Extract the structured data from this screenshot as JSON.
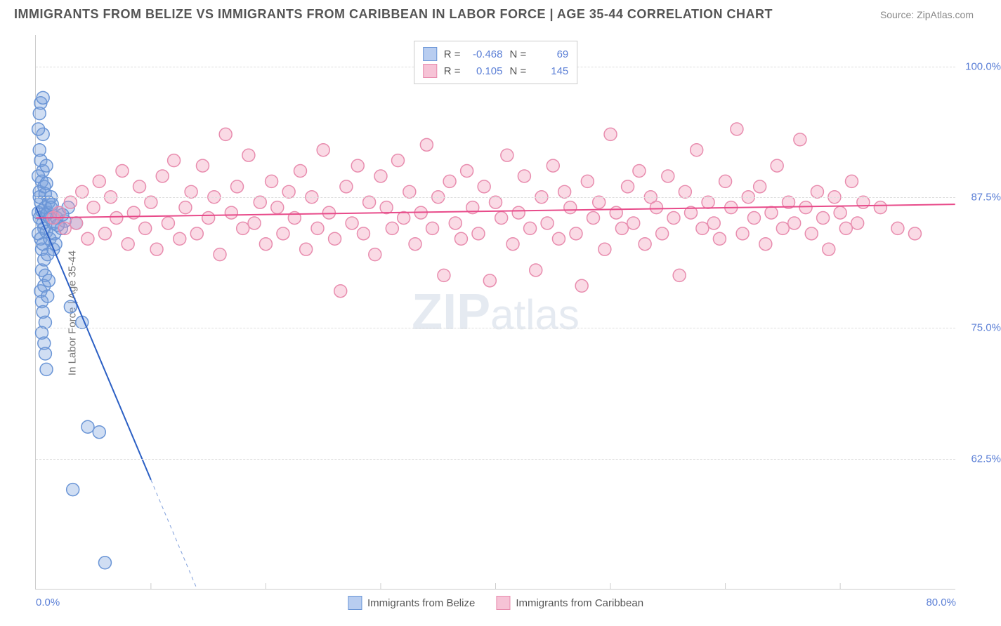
{
  "title": "IMMIGRANTS FROM BELIZE VS IMMIGRANTS FROM CARIBBEAN IN LABOR FORCE | AGE 35-44 CORRELATION CHART",
  "source": "Source: ZipAtlas.com",
  "y_axis_label": "In Labor Force | Age 35-44",
  "watermark_bold": "ZIP",
  "watermark_rest": "atlas",
  "chart": {
    "type": "scatter",
    "xlim": [
      0,
      80
    ],
    "ylim": [
      50,
      103
    ],
    "x_ticks": [
      0,
      80
    ],
    "x_tick_labels": [
      "0.0%",
      "80.0%"
    ],
    "x_minor_ticks": [
      10,
      20,
      30,
      40,
      50,
      60,
      70
    ],
    "y_ticks": [
      62.5,
      75,
      87.5,
      100
    ],
    "y_tick_labels": [
      "62.5%",
      "75.0%",
      "87.5%",
      "100.0%"
    ],
    "grid_color": "#dddddd",
    "axis_color": "#cccccc",
    "background_color": "#ffffff",
    "tick_label_color": "#5b7fd6",
    "marker_radius": 9,
    "marker_stroke_width": 1.5,
    "trend_line_width": 2
  },
  "series": [
    {
      "name": "Immigrants from Belize",
      "legend_label": "Immigrants from Belize",
      "R_label": "R =",
      "R_value": "-0.468",
      "N_label": "N =",
      "N_value": "69",
      "fill_color": "rgba(120, 160, 220, 0.35)",
      "stroke_color": "#6a95d6",
      "swatch_fill": "#b8cdf0",
      "swatch_border": "#6a95d6",
      "trend_color": "#2b5fc4",
      "trend": {
        "x1": 0,
        "y1": 86.5,
        "x2": 14,
        "y2": 50
      },
      "trend_solid_until_x": 10,
      "points": [
        [
          0.2,
          86.0
        ],
        [
          0.3,
          85.5
        ],
        [
          0.5,
          86.2
        ],
        [
          0.4,
          87.0
        ],
        [
          0.6,
          85.0
        ],
        [
          0.3,
          88.0
        ],
        [
          0.7,
          84.5
        ],
        [
          0.5,
          89.0
        ],
        [
          0.8,
          86.5
        ],
        [
          0.4,
          83.5
        ],
        [
          0.6,
          90.0
        ],
        [
          0.2,
          84.0
        ],
        [
          0.9,
          85.8
        ],
        [
          0.3,
          87.5
        ],
        [
          0.5,
          82.5
        ],
        [
          0.7,
          88.5
        ],
        [
          1.0,
          86.0
        ],
        [
          0.4,
          91.0
        ],
        [
          0.6,
          83.0
        ],
        [
          0.8,
          87.8
        ],
        [
          0.2,
          89.5
        ],
        [
          1.2,
          85.5
        ],
        [
          0.5,
          80.5
        ],
        [
          0.9,
          84.2
        ],
        [
          0.3,
          92.0
        ],
        [
          0.7,
          81.5
        ],
        [
          1.1,
          87.0
        ],
        [
          0.4,
          78.5
        ],
        [
          0.6,
          93.5
        ],
        [
          0.8,
          80.0
        ],
        [
          1.3,
          86.5
        ],
        [
          0.5,
          77.5
        ],
        [
          0.9,
          88.8
        ],
        [
          0.2,
          94.0
        ],
        [
          0.7,
          79.0
        ],
        [
          1.0,
          82.0
        ],
        [
          0.3,
          95.5
        ],
        [
          0.6,
          76.5
        ],
        [
          1.5,
          85.0
        ],
        [
          0.8,
          75.5
        ],
        [
          0.4,
          96.5
        ],
        [
          1.2,
          83.5
        ],
        [
          0.5,
          74.5
        ],
        [
          0.9,
          90.5
        ],
        [
          0.7,
          73.5
        ],
        [
          1.4,
          86.8
        ],
        [
          1.0,
          78.0
        ],
        [
          0.6,
          97.0
        ],
        [
          1.6,
          84.0
        ],
        [
          0.8,
          72.5
        ],
        [
          1.3,
          87.5
        ],
        [
          1.1,
          79.5
        ],
        [
          1.8,
          85.5
        ],
        [
          0.9,
          71.0
        ],
        [
          1.5,
          82.5
        ],
        [
          2.0,
          86.0
        ],
        [
          1.7,
          83.0
        ],
        [
          2.5,
          85.2
        ],
        [
          2.2,
          84.5
        ],
        [
          3.0,
          77.0
        ],
        [
          3.5,
          85.0
        ],
        [
          4.0,
          75.5
        ],
        [
          2.8,
          86.5
        ],
        [
          4.5,
          65.5
        ],
        [
          5.5,
          65.0
        ],
        [
          3.2,
          59.5
        ],
        [
          6.0,
          52.5
        ],
        [
          1.9,
          84.8
        ],
        [
          2.3,
          85.8
        ]
      ]
    },
    {
      "name": "Immigrants from Caribbean",
      "legend_label": "Immigrants from Caribbean",
      "R_label": "R =",
      "R_value": "0.105",
      "N_label": "N =",
      "N_value": "145",
      "fill_color": "rgba(240, 150, 180, 0.35)",
      "stroke_color": "#e88cae",
      "swatch_fill": "#f6c3d6",
      "swatch_border": "#e88cae",
      "trend_color": "#e84b8a",
      "trend": {
        "x1": 0,
        "y1": 85.5,
        "x2": 80,
        "y2": 86.8
      },
      "trend_solid_until_x": 80,
      "points": [
        [
          1.5,
          85.5
        ],
        [
          2.0,
          86.0
        ],
        [
          2.5,
          84.5
        ],
        [
          3.0,
          87.0
        ],
        [
          3.5,
          85.0
        ],
        [
          4.0,
          88.0
        ],
        [
          4.5,
          83.5
        ],
        [
          5.0,
          86.5
        ],
        [
          5.5,
          89.0
        ],
        [
          6.0,
          84.0
        ],
        [
          6.5,
          87.5
        ],
        [
          7.0,
          85.5
        ],
        [
          7.5,
          90.0
        ],
        [
          8.0,
          83.0
        ],
        [
          8.5,
          86.0
        ],
        [
          9.0,
          88.5
        ],
        [
          9.5,
          84.5
        ],
        [
          10.0,
          87.0
        ],
        [
          10.5,
          82.5
        ],
        [
          11.0,
          89.5
        ],
        [
          11.5,
          85.0
        ],
        [
          12.0,
          91.0
        ],
        [
          12.5,
          83.5
        ],
        [
          13.0,
          86.5
        ],
        [
          13.5,
          88.0
        ],
        [
          14.0,
          84.0
        ],
        [
          14.5,
          90.5
        ],
        [
          15.0,
          85.5
        ],
        [
          15.5,
          87.5
        ],
        [
          16.0,
          82.0
        ],
        [
          16.5,
          93.5
        ],
        [
          17.0,
          86.0
        ],
        [
          17.5,
          88.5
        ],
        [
          18.0,
          84.5
        ],
        [
          18.5,
          91.5
        ],
        [
          19.0,
          85.0
        ],
        [
          19.5,
          87.0
        ],
        [
          20.0,
          83.0
        ],
        [
          20.5,
          89.0
        ],
        [
          21.0,
          86.5
        ],
        [
          21.5,
          84.0
        ],
        [
          22.0,
          88.0
        ],
        [
          22.5,
          85.5
        ],
        [
          23.0,
          90.0
        ],
        [
          23.5,
          82.5
        ],
        [
          24.0,
          87.5
        ],
        [
          24.5,
          84.5
        ],
        [
          25.0,
          92.0
        ],
        [
          25.5,
          86.0
        ],
        [
          26.0,
          83.5
        ],
        [
          26.5,
          78.5
        ],
        [
          27.0,
          88.5
        ],
        [
          27.5,
          85.0
        ],
        [
          28.0,
          90.5
        ],
        [
          28.5,
          84.0
        ],
        [
          29.0,
          87.0
        ],
        [
          29.5,
          82.0
        ],
        [
          30.0,
          89.5
        ],
        [
          30.5,
          86.5
        ],
        [
          31.0,
          84.5
        ],
        [
          31.5,
          91.0
        ],
        [
          32.0,
          85.5
        ],
        [
          32.5,
          88.0
        ],
        [
          33.0,
          83.0
        ],
        [
          33.5,
          86.0
        ],
        [
          34.0,
          92.5
        ],
        [
          34.5,
          84.5
        ],
        [
          35.0,
          87.5
        ],
        [
          35.5,
          80.0
        ],
        [
          36.0,
          89.0
        ],
        [
          36.5,
          85.0
        ],
        [
          37.0,
          83.5
        ],
        [
          37.5,
          90.0
        ],
        [
          38.0,
          86.5
        ],
        [
          38.5,
          84.0
        ],
        [
          39.0,
          88.5
        ],
        [
          39.5,
          79.5
        ],
        [
          40.0,
          87.0
        ],
        [
          40.5,
          85.5
        ],
        [
          41.0,
          91.5
        ],
        [
          41.5,
          83.0
        ],
        [
          42.0,
          86.0
        ],
        [
          42.5,
          89.5
        ],
        [
          43.0,
          84.5
        ],
        [
          43.5,
          80.5
        ],
        [
          44.0,
          87.5
        ],
        [
          44.5,
          85.0
        ],
        [
          45.0,
          90.5
        ],
        [
          45.5,
          83.5
        ],
        [
          46.0,
          88.0
        ],
        [
          46.5,
          86.5
        ],
        [
          47.0,
          84.0
        ],
        [
          47.5,
          79.0
        ],
        [
          48.0,
          89.0
        ],
        [
          48.5,
          85.5
        ],
        [
          49.0,
          87.0
        ],
        [
          49.5,
          82.5
        ],
        [
          50.0,
          93.5
        ],
        [
          50.5,
          86.0
        ],
        [
          51.0,
          84.5
        ],
        [
          51.5,
          88.5
        ],
        [
          52.0,
          85.0
        ],
        [
          52.5,
          90.0
        ],
        [
          53.0,
          83.0
        ],
        [
          53.5,
          87.5
        ],
        [
          54.0,
          86.5
        ],
        [
          54.5,
          84.0
        ],
        [
          55.0,
          89.5
        ],
        [
          55.5,
          85.5
        ],
        [
          56.0,
          80.0
        ],
        [
          56.5,
          88.0
        ],
        [
          57.0,
          86.0
        ],
        [
          57.5,
          92.0
        ],
        [
          58.0,
          84.5
        ],
        [
          58.5,
          87.0
        ],
        [
          59.0,
          85.0
        ],
        [
          59.5,
          83.5
        ],
        [
          60.0,
          89.0
        ],
        [
          60.5,
          86.5
        ],
        [
          61.0,
          94.0
        ],
        [
          61.5,
          84.0
        ],
        [
          62.0,
          87.5
        ],
        [
          62.5,
          85.5
        ],
        [
          63.0,
          88.5
        ],
        [
          63.5,
          83.0
        ],
        [
          64.0,
          86.0
        ],
        [
          64.5,
          90.5
        ],
        [
          65.0,
          84.5
        ],
        [
          65.5,
          87.0
        ],
        [
          66.0,
          85.0
        ],
        [
          66.5,
          93.0
        ],
        [
          67.0,
          86.5
        ],
        [
          67.5,
          84.0
        ],
        [
          68.0,
          88.0
        ],
        [
          68.5,
          85.5
        ],
        [
          69.0,
          82.5
        ],
        [
          69.5,
          87.5
        ],
        [
          70.0,
          86.0
        ],
        [
          70.5,
          84.5
        ],
        [
          71.0,
          89.0
        ],
        [
          71.5,
          85.0
        ],
        [
          72.0,
          87.0
        ],
        [
          73.5,
          86.5
        ],
        [
          75.0,
          84.5
        ],
        [
          76.5,
          84.0
        ]
      ]
    }
  ]
}
